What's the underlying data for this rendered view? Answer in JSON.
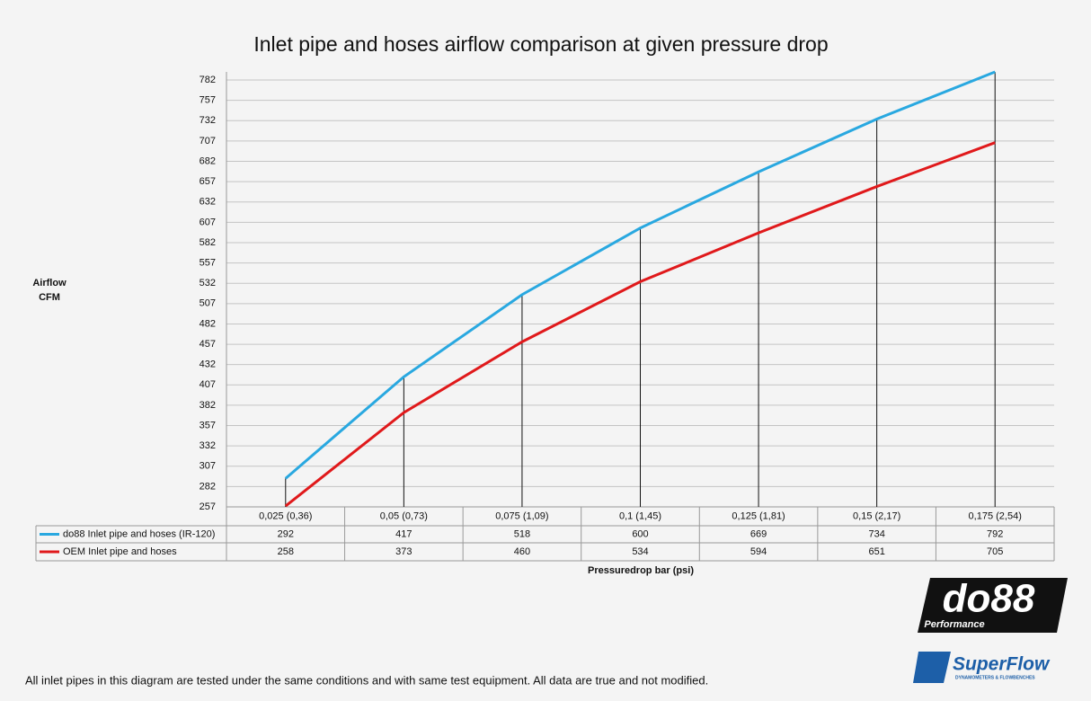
{
  "chart_data": {
    "type": "line",
    "title": "Inlet pipe and hoses airflow comparison at given pressure drop",
    "y_label": [
      "Airflow",
      "CFM"
    ],
    "x_label": "Pressuredrop bar (psi)",
    "categories": [
      "0,025 (0,36)",
      "0,05 (0,73)",
      "0,075 (1,09)",
      "0,1 (1,45)",
      "0,125 (1,81)",
      "0,15 (2,17)",
      "0,175 (2,54)"
    ],
    "series": [
      {
        "name": "do88 Inlet pipe and hoses (IR-120)",
        "color": "#29a8e0",
        "values": [
          292,
          417,
          518,
          600,
          669,
          734,
          792
        ]
      },
      {
        "name": "OEM Inlet pipe and hoses",
        "color": "#e0191b",
        "values": [
          258,
          373,
          460,
          534,
          594,
          651,
          705
        ]
      }
    ],
    "ylim": [
      257,
      792
    ],
    "yticks": [
      257,
      282,
      307,
      332,
      357,
      382,
      407,
      432,
      457,
      482,
      507,
      532,
      557,
      582,
      607,
      632,
      657,
      682,
      707,
      732,
      757,
      782
    ],
    "grid": true,
    "footnote": "All inlet pipes in this diagram are tested under the same conditions and with same test equipment. All data are true and not modified.",
    "logos": [
      "do88",
      "Performance",
      "SuperFlow",
      "DYNAMOMETERS & FLOWBENCHES"
    ]
  }
}
